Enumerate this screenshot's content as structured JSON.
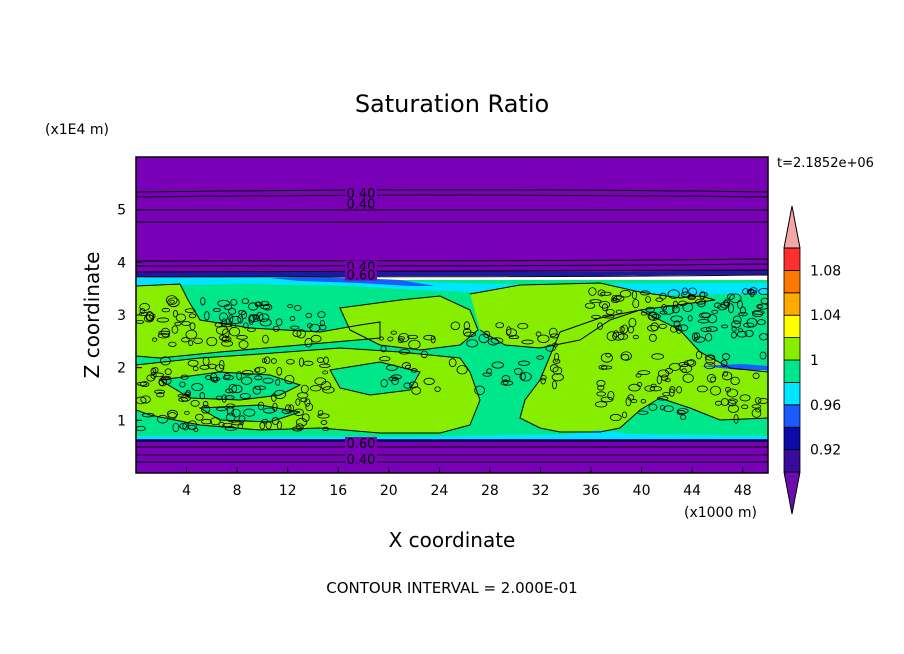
{
  "chart_data": {
    "type": "heatmap",
    "title": "Saturation Ratio",
    "xlabel": "X coordinate",
    "ylabel": "Z coordinate",
    "x_unit": "(x1000 m)",
    "y_unit": "(x1E4 m)",
    "time_label": "t=2.1852e+06",
    "footer": "CONTOUR INTERVAL = 2.000E-01",
    "xlim": [
      0,
      50
    ],
    "ylim": [
      0,
      6
    ],
    "x_ticks": [
      4,
      8,
      12,
      16,
      20,
      24,
      28,
      32,
      36,
      40,
      44,
      48
    ],
    "y_ticks": [
      1,
      2,
      3,
      4,
      5
    ],
    "contour_labels": [
      {
        "text": "0.40",
        "x": 17.8,
        "y": 5.3
      },
      {
        "text": "0.40",
        "x": 17.8,
        "y": 5.1
      },
      {
        "text": "0.40",
        "x": 17.8,
        "y": 3.9
      },
      {
        "text": "0.60",
        "x": 17.8,
        "y": 3.75
      },
      {
        "text": "0.60",
        "x": 17.8,
        "y": 0.55
      },
      {
        "text": "0.40",
        "x": 17.8,
        "y": 0.25
      }
    ],
    "colorbar": {
      "labels": [
        "1.08",
        "1.04",
        "1",
        "0.96",
        "0.92"
      ],
      "colors": [
        "#6a0dad",
        "#3a0a9a",
        "#0a0aa8",
        "#1a5cff",
        "#00e5ff",
        "#00e68a",
        "#88ee00",
        "#ffff00",
        "#ffaa00",
        "#ff7700",
        "#ff3030",
        "#f4a6a6"
      ]
    },
    "region_colors": {
      "dry": "#7a00b8",
      "band_dark": "#1a1aa0",
      "band_blue": "#1a5cff",
      "cyan": "#00e5ff",
      "green": "#00e68a",
      "lime": "#88ee00"
    }
  }
}
